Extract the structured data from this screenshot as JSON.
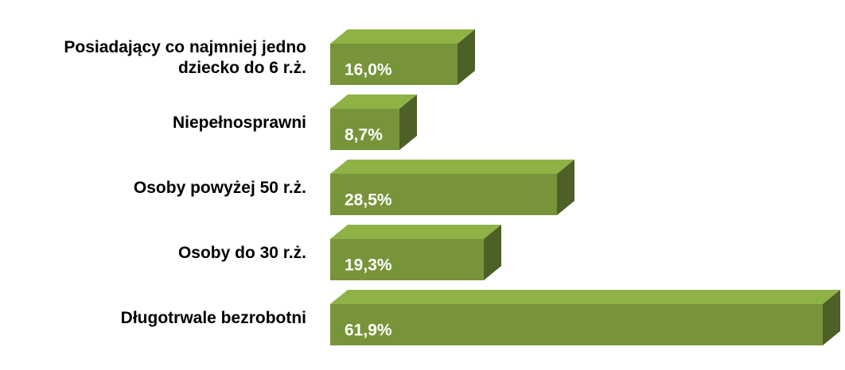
{
  "chart_data": {
    "type": "bar3d",
    "categories": [
      "Posiadający co najmniej jedno dziecko do 6 r.ż.",
      "Niepełnosprawni",
      "Osoby powyżej 50 r.ż.",
      "Osoby do 30 r.ż.",
      "Długotrwale bezrobotni"
    ],
    "values": [
      16.0,
      8.7,
      28.5,
      19.3,
      61.9
    ],
    "value_labels": [
      "16,0%",
      "8,7%",
      "28,5%",
      "19,3%",
      "61,9%"
    ],
    "color": "#77943a"
  }
}
